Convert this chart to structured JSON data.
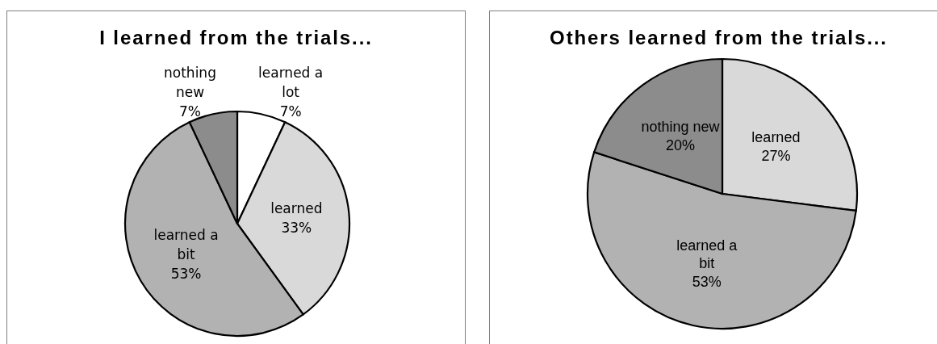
{
  "chart_data": [
    {
      "type": "pie",
      "title": "I learned from the trials...",
      "categories": [
        "learned a lot",
        "learned",
        "learned a bit",
        "nothing new"
      ],
      "values": [
        7,
        33,
        53,
        7
      ],
      "value_labels": [
        "7%",
        "33%",
        "53%",
        "7%"
      ],
      "colors": [
        "#ffffff",
        "#d9d9d9",
        "#b2b2b2",
        "#8c8c8c"
      ]
    },
    {
      "type": "pie",
      "title": "Others learned from the trials...",
      "categories": [
        "learned",
        "learned a bit",
        "nothing new"
      ],
      "values": [
        27,
        53,
        20
      ],
      "value_labels": [
        "27%",
        "53%",
        "20%"
      ],
      "colors": [
        "#d9d9d9",
        "#b2b2b2",
        "#8c8c8c"
      ]
    }
  ]
}
